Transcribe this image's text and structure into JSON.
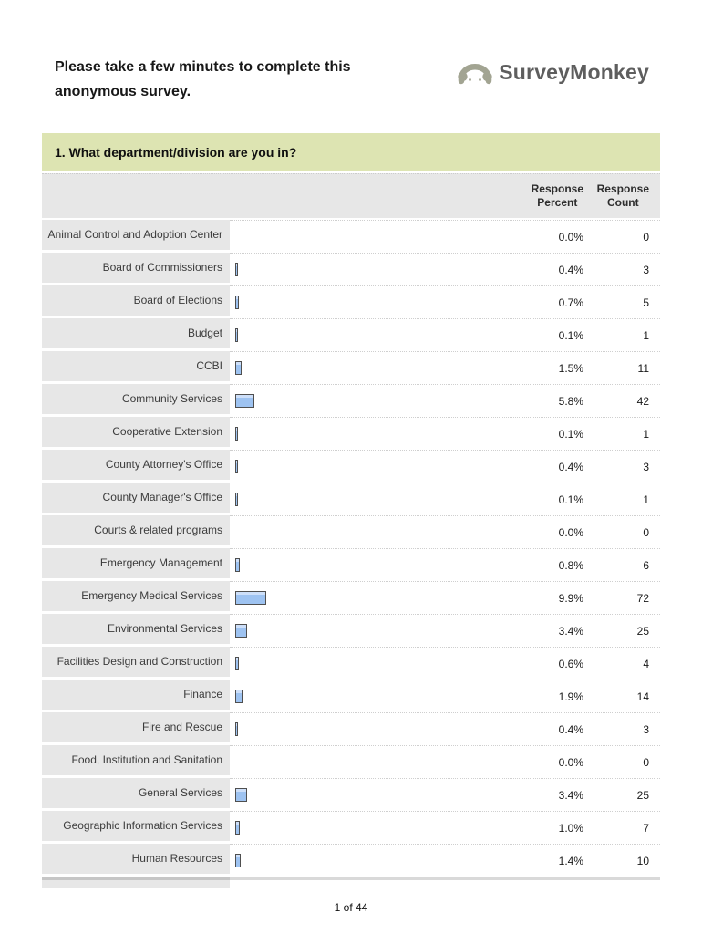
{
  "header": {
    "intro_line1": "Please take a few minutes to complete this",
    "intro_line2": "anonymous survey.",
    "logo_text": "SurveyMonkey"
  },
  "question": {
    "title": "1. What department/division are you in?"
  },
  "table": {
    "header": {
      "percent_line1": "Response",
      "percent_line2": "Percent",
      "count_line1": "Response",
      "count_line2": "Count"
    },
    "rows": [
      {
        "label": "Animal Control and Adoption Center",
        "percent": "0.0%",
        "count": "0",
        "pct": 0
      },
      {
        "label": "Board of Commissioners",
        "percent": "0.4%",
        "count": "3",
        "pct": 0.4
      },
      {
        "label": "Board of Elections",
        "percent": "0.7%",
        "count": "5",
        "pct": 0.7
      },
      {
        "label": "Budget",
        "percent": "0.1%",
        "count": "1",
        "pct": 0.1
      },
      {
        "label": "CCBI",
        "percent": "1.5%",
        "count": "11",
        "pct": 1.5
      },
      {
        "label": "Community Services",
        "percent": "5.8%",
        "count": "42",
        "pct": 5.8
      },
      {
        "label": "Cooperative Extension",
        "percent": "0.1%",
        "count": "1",
        "pct": 0.1
      },
      {
        "label": "County Attorney's Office",
        "percent": "0.4%",
        "count": "3",
        "pct": 0.4
      },
      {
        "label": "County Manager's Office",
        "percent": "0.1%",
        "count": "1",
        "pct": 0.1
      },
      {
        "label": "Courts & related programs",
        "percent": "0.0%",
        "count": "0",
        "pct": 0
      },
      {
        "label": "Emergency Management",
        "percent": "0.8%",
        "count": "6",
        "pct": 0.8
      },
      {
        "label": "Emergency Medical Services",
        "percent": "9.9%",
        "count": "72",
        "pct": 9.9
      },
      {
        "label": "Environmental Services",
        "percent": "3.4%",
        "count": "25",
        "pct": 3.4
      },
      {
        "label": "Facilities Design and Construction",
        "percent": "0.6%",
        "count": "4",
        "pct": 0.6
      },
      {
        "label": "Finance",
        "percent": "1.9%",
        "count": "14",
        "pct": 1.9
      },
      {
        "label": "Fire and Rescue",
        "percent": "0.4%",
        "count": "3",
        "pct": 0.4
      },
      {
        "label": "Food, Institution and Sanitation",
        "percent": "0.0%",
        "count": "0",
        "pct": 0
      },
      {
        "label": "General Services",
        "percent": "3.4%",
        "count": "25",
        "pct": 3.4
      },
      {
        "label": "Geographic Information Services",
        "percent": "1.0%",
        "count": "7",
        "pct": 1.0
      },
      {
        "label": "Human Resources",
        "percent": "1.4%",
        "count": "10",
        "pct": 1.4
      }
    ]
  },
  "footer": {
    "page_number": "1 of 44"
  },
  "colors": {
    "question_bg": "#dde4b2",
    "cell_bg": "#e7e7e7",
    "bar_fill": "#9ec3f1",
    "bar_fill_highlight": "#cddff9",
    "bar_border": "#4f4f4f",
    "logo_icon": "#a2a492",
    "logo_text": "#5e5e5e"
  }
}
